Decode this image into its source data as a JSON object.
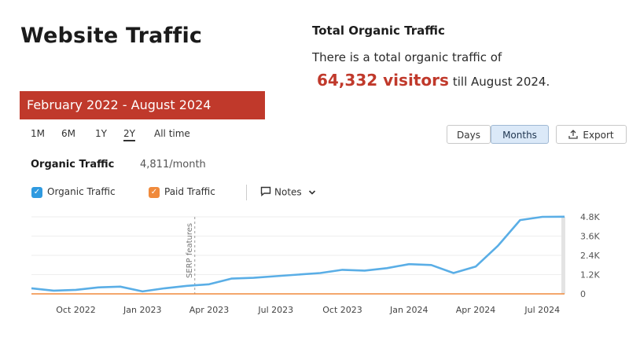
{
  "header": {
    "title": "Website Traffic"
  },
  "summary": {
    "heading": "Total Organic Traffic",
    "line1": "There is a total organic traffic of",
    "visitors": "64,332 visitors",
    "suffix": "till August 2024."
  },
  "banner": {
    "label": "February 2022 - August 2024"
  },
  "range_tabs": [
    {
      "label": "1M",
      "active": false
    },
    {
      "label": "6M",
      "active": false
    },
    {
      "label": "1Y",
      "active": false
    },
    {
      "label": "2Y",
      "active": true
    },
    {
      "label": "All time",
      "active": false
    }
  ],
  "view_toggle": {
    "days": "Days",
    "months": "Months",
    "selected": "Months"
  },
  "export": {
    "label": "Export"
  },
  "metric": {
    "title": "Organic Traffic",
    "value": "4,811/month"
  },
  "legend": {
    "organic": {
      "label": "Organic Traffic",
      "color": "#2f9ae0"
    },
    "paid": {
      "label": "Paid Traffic",
      "color": "#f08a3c"
    },
    "notes": "Notes"
  },
  "colors": {
    "accent": "#c0392b",
    "line": "#5aaee6",
    "paid_line": "#f08a3c"
  },
  "chart_data": {
    "type": "line",
    "x": [
      "Aug 2022",
      "Sep 2022",
      "Oct 2022",
      "Nov 2022",
      "Dec 2022",
      "Jan 2023",
      "Feb 2023",
      "Mar 2023",
      "Apr 2023",
      "May 2023",
      "Jun 2023",
      "Jul 2023",
      "Aug 2023",
      "Sep 2023",
      "Oct 2023",
      "Nov 2023",
      "Dec 2023",
      "Jan 2024",
      "Feb 2024",
      "Mar 2024",
      "Apr 2024",
      "May 2024",
      "Jun 2024",
      "Jul 2024",
      "Aug 2024"
    ],
    "xticks": [
      "Oct 2022",
      "Jan 2023",
      "Apr 2023",
      "Jul 2023",
      "Oct 2023",
      "Jan 2024",
      "Apr 2024",
      "Jul 2024"
    ],
    "yticks": [
      "0",
      "1.2K",
      "2.4K",
      "3.6K",
      "4.8K"
    ],
    "ylim": [
      0,
      4800
    ],
    "annotation": {
      "x": "Mar 2023",
      "label": "SERP features"
    },
    "series": [
      {
        "name": "Organic Traffic",
        "values": [
          350,
          200,
          250,
          400,
          450,
          150,
          350,
          500,
          600,
          950,
          1000,
          1100,
          1200,
          1300,
          1500,
          1450,
          1600,
          1850,
          1800,
          1300,
          1700,
          3000,
          4600,
          4800,
          4811
        ]
      },
      {
        "name": "Paid Traffic",
        "values": [
          0,
          0,
          0,
          0,
          0,
          0,
          0,
          0,
          0,
          0,
          0,
          0,
          0,
          0,
          0,
          0,
          0,
          0,
          0,
          0,
          0,
          0,
          0,
          0,
          0
        ]
      }
    ]
  }
}
